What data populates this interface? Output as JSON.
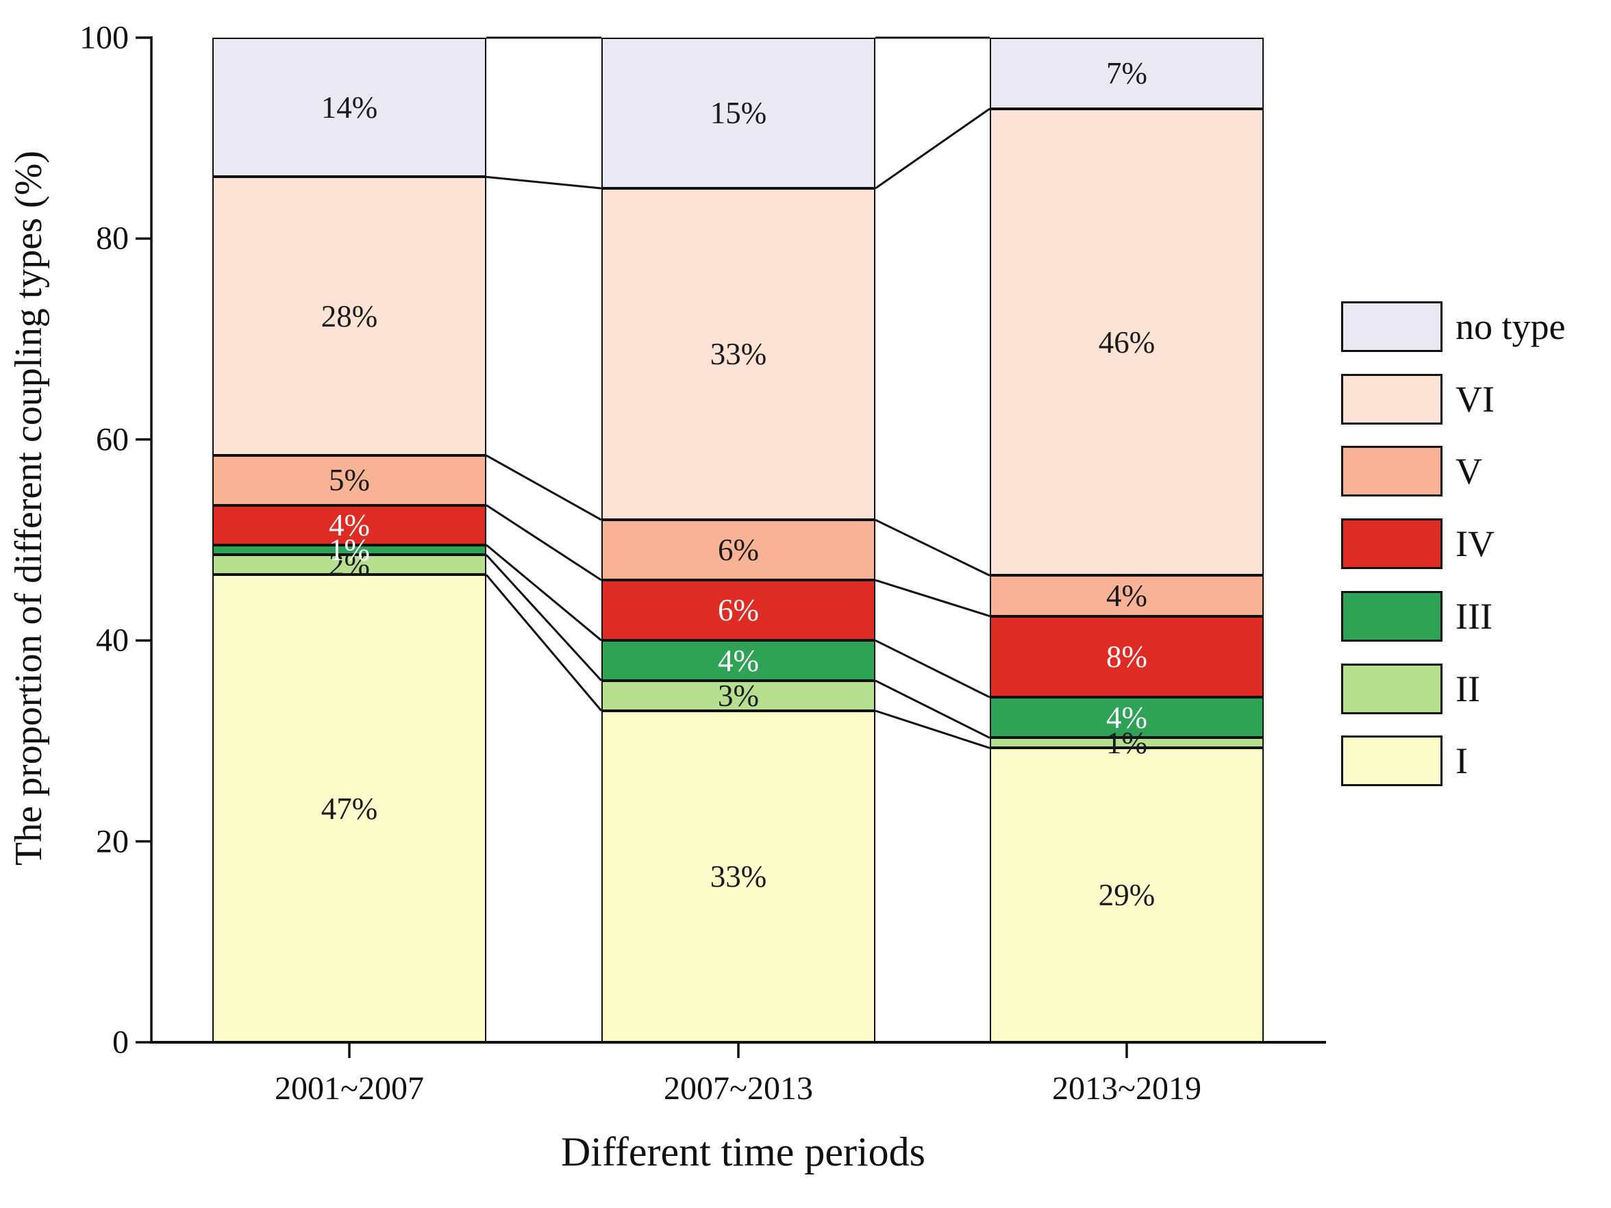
{
  "chart_data": {
    "type": "bar",
    "stacked": true,
    "title": "",
    "xlabel": "Different time periods",
    "ylabel": "The proportion of different coupling types (%)",
    "ylim": [
      0,
      100
    ],
    "yticks": [
      "0",
      "20",
      "40",
      "60",
      "80",
      "100"
    ],
    "categories": [
      "2001~2007",
      "2007~2013",
      "2013~2019"
    ],
    "series": [
      {
        "name": "I",
        "color": "#fcfccb",
        "values": [
          47,
          33,
          29
        ],
        "labels": [
          "47%",
          "33%",
          "29%"
        ],
        "label_color": "#1a1a1a"
      },
      {
        "name": "II",
        "color": "#b7df90",
        "values": [
          2,
          3,
          1
        ],
        "labels": [
          "2%",
          "3%",
          "1%"
        ],
        "label_color": "#1a1a1a"
      },
      {
        "name": "III",
        "color": "#2fa355",
        "values": [
          1,
          4,
          4
        ],
        "labels": [
          "1%",
          "4%",
          "4%"
        ],
        "label_color": "#ffffff"
      },
      {
        "name": "IV",
        "color": "#de2b23",
        "values": [
          4,
          6,
          8
        ],
        "labels": [
          "4%",
          "6%",
          "8%"
        ],
        "label_color": "#ffffff"
      },
      {
        "name": "V",
        "color": "#f8b295",
        "values": [
          5,
          6,
          4
        ],
        "labels": [
          "5%",
          "6%",
          "4%"
        ],
        "label_color": "#1a1a1a"
      },
      {
        "name": "VI",
        "color": "#fce3d6",
        "values": [
          28,
          33,
          46
        ],
        "labels": [
          "28%",
          "33%",
          "46%"
        ],
        "label_color": "#1a1a1a"
      },
      {
        "name": "no type",
        "color": "#eae8f2",
        "values": [
          14,
          15,
          7
        ],
        "labels": [
          "14%",
          "15%",
          "7%"
        ],
        "label_color": "#1a1a1a"
      }
    ],
    "legend": {
      "position": "right",
      "items": [
        "no type",
        "VI",
        "V",
        "IV",
        "III",
        "II",
        "I"
      ]
    },
    "connectors": true,
    "grid": false,
    "axis_color": "#111111"
  }
}
